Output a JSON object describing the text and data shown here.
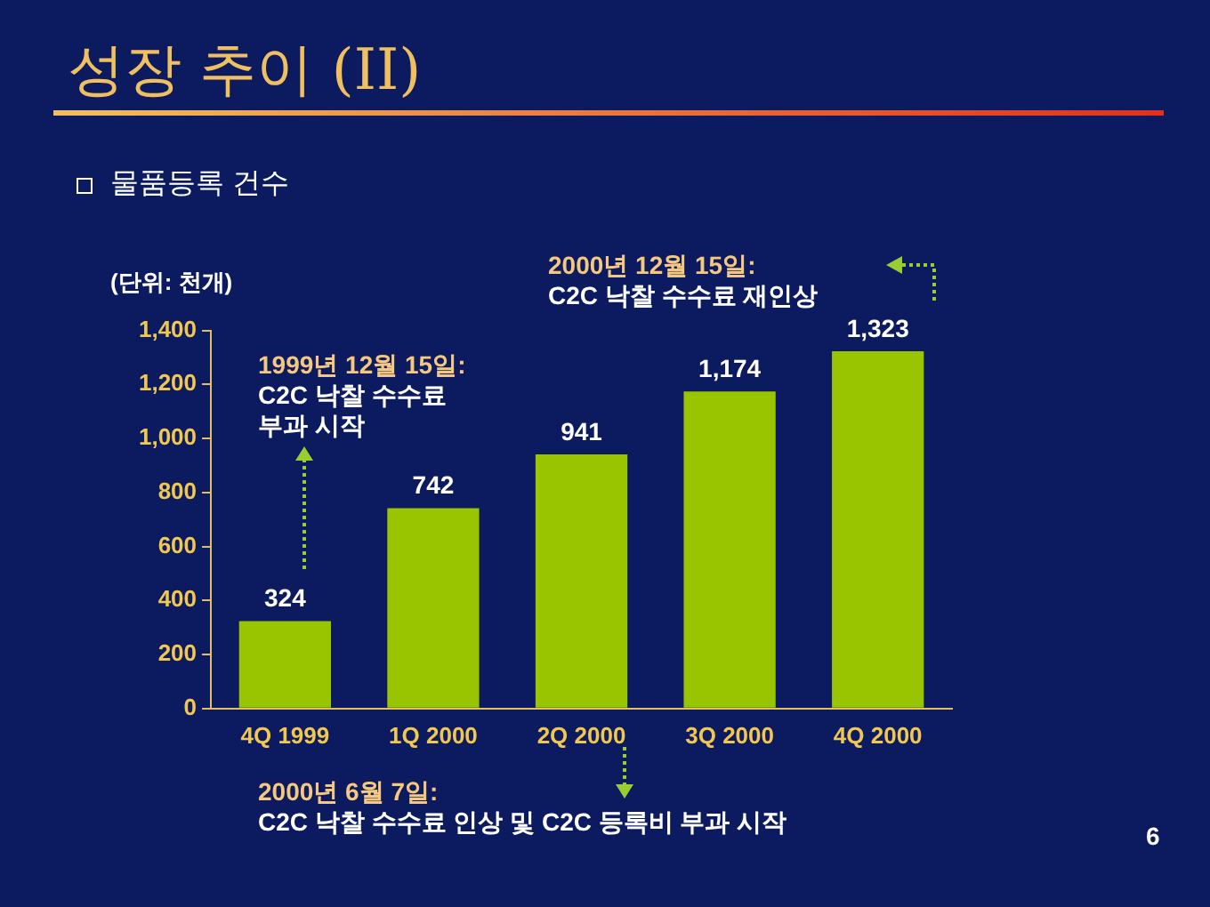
{
  "chart_data": {
    "type": "bar",
    "title": "성장 추이 (II)",
    "subtitle": "물품등록 건수",
    "ylabel": "(단위: 천개)",
    "categories": [
      "4Q 1999",
      "1Q 2000",
      "2Q 2000",
      "3Q 2000",
      "4Q 2000"
    ],
    "values": [
      324,
      742,
      941,
      1174,
      1323
    ],
    "color": "#99c400",
    "value_labels": [
      "324",
      "742",
      "941",
      "1,174",
      "1,323"
    ],
    "ylim": [
      0,
      1400
    ],
    "yticks": [
      0,
      200,
      400,
      600,
      800,
      {
        "value": 1000,
        "label": "1,000"
      },
      {
        "value": 1200,
        "label": "1,200"
      },
      {
        "value": 1400,
        "label": "1,400"
      }
    ],
    "grid": false,
    "legend": false,
    "annotations": [
      "1999년 12월 15일:\nC2C 낙찰 수수료\n부과 시작",
      "2000년 12월 15일:\nC2C 낙찰 수수료 재인상",
      "2000년 6월 7일:\nC2C 낙찰 수수료 인상 및 C2C 등록비 부과 시작",
      "6"
    ]
  }
}
